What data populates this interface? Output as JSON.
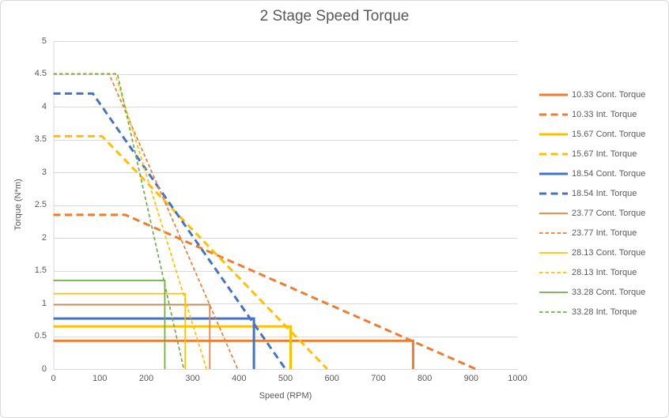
{
  "chart": {
    "title": "2 Stage Speed Torque",
    "x_axis": {
      "label": "Speed (RPM)"
    },
    "y_axis": {
      "label": "Torque (N*m)"
    },
    "text_color": "#595959",
    "grid_color": "#D9D9D9",
    "axis_color": "#D9D9D9",
    "background_color": "#FFFFFF"
  },
  "chart_data": {
    "type": "line",
    "title": "2 Stage Speed Torque",
    "xlabel": "Speed (RPM)",
    "ylabel": "Torque (N*m)",
    "xlim": [
      0,
      1000
    ],
    "ylim": [
      0,
      5
    ],
    "grid": "horizontal-only",
    "legend_position": "right-middle",
    "xticks": [
      {
        "value": 0,
        "label": "0"
      },
      {
        "value": 100,
        "label": "100"
      },
      {
        "value": 200,
        "label": "200"
      },
      {
        "value": 300,
        "label": "300"
      },
      {
        "value": 400,
        "label": "400"
      },
      {
        "value": 500,
        "label": "500"
      },
      {
        "value": 600,
        "label": "600"
      },
      {
        "value": 700,
        "label": "700"
      },
      {
        "value": 800,
        "label": "800"
      },
      {
        "value": 900,
        "label": "900"
      },
      {
        "value": 1000,
        "label": "1000"
      }
    ],
    "yticks": [
      {
        "value": 0,
        "label": "0"
      },
      {
        "value": 0.5,
        "label": "0.5"
      },
      {
        "value": 1,
        "label": "1"
      },
      {
        "value": 1.5,
        "label": "1.5"
      },
      {
        "value": 2,
        "label": "2"
      },
      {
        "value": 2.5,
        "label": "2.5"
      },
      {
        "value": 3,
        "label": "3"
      },
      {
        "value": 3.5,
        "label": "3.5"
      },
      {
        "value": 4,
        "label": "4"
      },
      {
        "value": 4.5,
        "label": "4.5"
      },
      {
        "value": 5,
        "label": "5"
      }
    ],
    "series": [
      {
        "name": "10.33 Cont. Torque",
        "color": "#ED7D31",
        "style": "solid",
        "weight": "thick",
        "points": [
          [
            0,
            0.43
          ],
          [
            775,
            0.43
          ],
          [
            775,
            0
          ]
        ]
      },
      {
        "name": "10.33 Int. Torque",
        "color": "#ED7D31",
        "style": "dash",
        "weight": "thick",
        "points": [
          [
            0,
            2.35
          ],
          [
            155,
            2.35
          ],
          [
            910,
            0
          ]
        ]
      },
      {
        "name": "15.67 Cont. Torque",
        "color": "#FFC000",
        "style": "solid",
        "weight": "thick",
        "points": [
          [
            0,
            0.65
          ],
          [
            511,
            0.65
          ],
          [
            511,
            0
          ]
        ]
      },
      {
        "name": "15.67 Int. Torque",
        "color": "#FFC000",
        "style": "dash",
        "weight": "thick",
        "points": [
          [
            0,
            3.55
          ],
          [
            105,
            3.55
          ],
          [
            590,
            0
          ]
        ]
      },
      {
        "name": "18.54 Cont. Torque",
        "color": "#4472C4",
        "style": "solid",
        "weight": "thick",
        "points": [
          [
            0,
            0.77
          ],
          [
            432,
            0.77
          ],
          [
            432,
            0
          ]
        ]
      },
      {
        "name": "18.54 Int. Torque",
        "color": "#4472C4",
        "style": "dash",
        "weight": "thick",
        "points": [
          [
            0,
            4.2
          ],
          [
            85,
            4.2
          ],
          [
            500,
            0
          ]
        ]
      },
      {
        "name": "23.77 Cont. Torque",
        "color": "#ED7D31",
        "style": "solid",
        "weight": "thin",
        "points": [
          [
            0,
            0.98
          ],
          [
            337,
            0.98
          ],
          [
            337,
            0
          ]
        ]
      },
      {
        "name": "23.77 Int. Torque",
        "color": "#ED7D31",
        "style": "dash",
        "weight": "thin",
        "points": [
          [
            0,
            4.5
          ],
          [
            120,
            4.5
          ],
          [
            397,
            0
          ]
        ]
      },
      {
        "name": "28.13 Cont. Torque",
        "color": "#FFC000",
        "style": "solid",
        "weight": "thin",
        "points": [
          [
            0,
            1.15
          ],
          [
            284,
            1.15
          ],
          [
            284,
            0
          ]
        ]
      },
      {
        "name": "28.13 Int. Torque",
        "color": "#FFC000",
        "style": "dash",
        "weight": "thin",
        "points": [
          [
            0,
            4.5
          ],
          [
            133,
            4.5
          ],
          [
            330,
            0
          ]
        ]
      },
      {
        "name": "33.28 Cont. Torque",
        "color": "#70AD47",
        "style": "solid",
        "weight": "thin",
        "points": [
          [
            0,
            1.35
          ],
          [
            240,
            1.35
          ],
          [
            240,
            0
          ]
        ]
      },
      {
        "name": "33.28 Int. Torque",
        "color": "#70AD47",
        "style": "dash",
        "weight": "thin",
        "points": [
          [
            0,
            4.5
          ],
          [
            138,
            4.5
          ],
          [
            281,
            0
          ]
        ]
      }
    ]
  }
}
